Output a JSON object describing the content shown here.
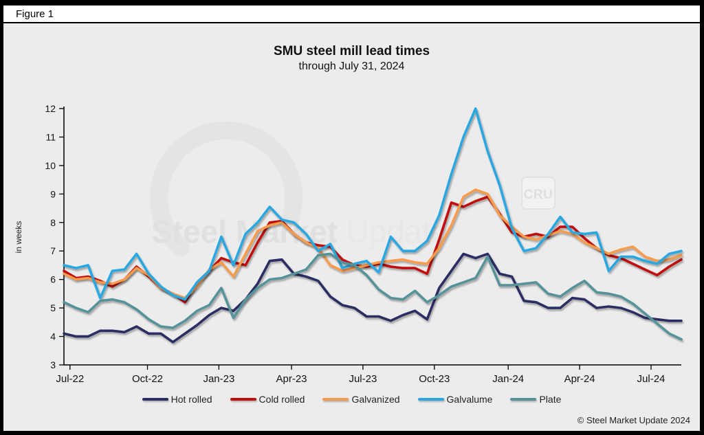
{
  "window": {
    "figure_label": "Figure 1"
  },
  "header": {
    "title": "SMU steel mill lead times",
    "subtitle": "through July 31, 2024"
  },
  "y_axis_label": "in weeks",
  "watermark": {
    "text_bold": "Steel Market",
    "text_light": "Update",
    "badge": "CRU"
  },
  "footer": {
    "copyright": "© Steel Market Update 2024"
  },
  "chart_data": {
    "type": "line",
    "title": "SMU steel mill lead times",
    "subtitle": "through July 31, 2024",
    "ylabel": "in weeks",
    "ylim": [
      3,
      12
    ],
    "y_tick_step": 1,
    "grid": false,
    "legend_position": "bottom",
    "x_unit": "biweekly survey points, Jul-2022 through Jul-2024",
    "n_points": 52,
    "x_tick_labels": [
      "Jul-22",
      "Oct-22",
      "Jan-23",
      "Apr-23",
      "Jul-23",
      "Oct-23",
      "Jan-24",
      "Apr-24",
      "Jul-24"
    ],
    "x_tick_positions": [
      0.5,
      6.9,
      12.8,
      18.8,
      24.7,
      30.6,
      36.7,
      42.6,
      48.5
    ],
    "series": [
      {
        "name": "Hot rolled",
        "color": "#2b2f63",
        "values": [
          4.1,
          4.0,
          4.0,
          4.2,
          4.2,
          4.15,
          4.35,
          4.1,
          4.1,
          3.8,
          4.1,
          4.4,
          4.75,
          5.0,
          4.9,
          5.3,
          5.85,
          6.65,
          6.7,
          6.2,
          6.1,
          5.95,
          5.4,
          5.1,
          5.0,
          4.7,
          4.7,
          4.55,
          4.75,
          4.9,
          4.6,
          5.7,
          6.3,
          6.9,
          6.75,
          6.9,
          6.2,
          6.1,
          5.25,
          5.2,
          5.0,
          5.0,
          5.35,
          5.3,
          5.0,
          5.05,
          5.0,
          4.85,
          4.65,
          4.6,
          4.55,
          4.55
        ]
      },
      {
        "name": "Cold rolled",
        "color": "#c00d0d",
        "values": [
          6.3,
          6.05,
          6.1,
          5.95,
          5.75,
          6.0,
          6.45,
          6.1,
          5.7,
          5.5,
          5.2,
          5.9,
          6.3,
          6.75,
          6.6,
          6.5,
          7.3,
          8.0,
          8.05,
          7.6,
          7.3,
          7.2,
          7.15,
          6.7,
          6.5,
          6.45,
          6.55,
          6.45,
          6.4,
          6.4,
          6.2,
          7.4,
          8.7,
          8.55,
          8.75,
          8.9,
          8.3,
          7.65,
          7.5,
          7.6,
          7.5,
          7.85,
          7.85,
          7.45,
          7.1,
          6.85,
          6.75,
          6.55,
          6.35,
          6.15,
          6.45,
          6.7
        ]
      },
      {
        "name": "Galvanized",
        "color": "#f79b4e",
        "values": [
          6.2,
          6.0,
          6.05,
          5.9,
          5.85,
          6.0,
          6.4,
          6.15,
          5.7,
          5.5,
          5.35,
          5.75,
          6.35,
          6.6,
          6.1,
          6.9,
          7.7,
          7.9,
          8.0,
          7.6,
          7.3,
          7.1,
          6.5,
          6.3,
          6.4,
          6.5,
          6.6,
          6.65,
          6.7,
          6.6,
          6.55,
          7.1,
          7.9,
          8.9,
          9.15,
          9.0,
          8.25,
          7.85,
          7.5,
          7.4,
          7.55,
          7.7,
          7.6,
          7.3,
          7.1,
          6.9,
          7.05,
          7.15,
          6.8,
          6.65,
          6.7,
          6.85
        ]
      },
      {
        "name": "Galvalume",
        "color": "#2aa7e0",
        "values": [
          6.5,
          6.4,
          6.5,
          5.35,
          6.3,
          6.35,
          6.9,
          6.2,
          5.75,
          5.45,
          5.3,
          5.9,
          6.3,
          7.5,
          6.5,
          7.6,
          8.0,
          8.55,
          8.1,
          8.0,
          7.6,
          7.0,
          7.25,
          6.4,
          6.55,
          6.65,
          6.25,
          7.5,
          7.0,
          7.0,
          7.35,
          8.25,
          9.7,
          11.0,
          12.0,
          10.5,
          9.3,
          7.8,
          7.0,
          7.1,
          7.6,
          8.2,
          7.65,
          7.6,
          7.65,
          6.3,
          6.8,
          6.8,
          6.65,
          6.55,
          6.9,
          7.0
        ]
      },
      {
        "name": "Plate",
        "color": "#55929a",
        "values": [
          5.2,
          5.0,
          4.85,
          5.25,
          5.3,
          5.2,
          4.95,
          4.6,
          4.35,
          4.3,
          4.55,
          4.9,
          5.1,
          5.7,
          4.65,
          5.3,
          5.7,
          6.0,
          6.05,
          6.2,
          6.35,
          6.85,
          6.9,
          6.6,
          6.5,
          6.15,
          5.65,
          5.35,
          5.3,
          5.6,
          5.2,
          5.45,
          5.75,
          5.9,
          6.05,
          6.8,
          5.8,
          5.8,
          5.85,
          5.9,
          5.5,
          5.4,
          5.7,
          5.95,
          5.55,
          5.5,
          5.4,
          5.15,
          4.8,
          4.45,
          4.1,
          3.9
        ]
      }
    ]
  }
}
